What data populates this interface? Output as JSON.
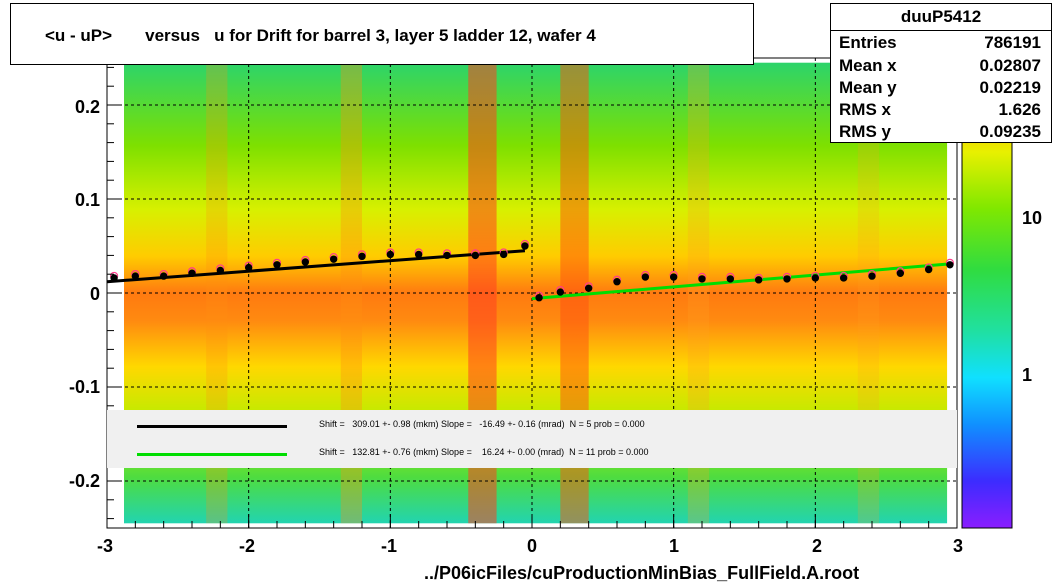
{
  "title": "<u - uP>       versus   u for Drift for barrel 3, layer 5 ladder 12, wafer 4",
  "stats": {
    "name": "duuP5412",
    "rows": [
      {
        "label": "Entries",
        "value": "786191"
      },
      {
        "label": "Mean x",
        "value": "0.02807"
      },
      {
        "label": "Mean y",
        "value": "0.02219"
      },
      {
        "label": "RMS x",
        "value": "1.626"
      },
      {
        "label": "RMS y",
        "value": "0.09235"
      }
    ]
  },
  "legend": {
    "entries": [
      {
        "color": "#000000",
        "text": "Shift =   309.01 +- 0.98 (mkm) Slope =   -16.49 +- 0.16 (mrad)  N = 5 prob = 0.000"
      },
      {
        "color": "#00dd00",
        "text": "Shift =   132.81 +- 0.76 (mkm) Slope =    16.24 +- 0.00 (mrad)  N = 11 prob = 0.000"
      }
    ]
  },
  "xlabel": "../P06icFiles/cuProductionMinBias_FullField.A.root",
  "colors": {
    "fit_black": "#000000",
    "fit_green": "#00dd00",
    "profile_pink": "#ff3c8c"
  },
  "chart_data": {
    "type": "heatmap",
    "xlim": [
      -3,
      3
    ],
    "ylim": [
      -0.25,
      0.25
    ],
    "x_ticks": [
      {
        "label": "-3",
        "value": -3
      },
      {
        "label": "-2",
        "value": -2
      },
      {
        "label": "-1",
        "value": -1
      },
      {
        "label": "0",
        "value": 0
      },
      {
        "label": "1",
        "value": 1
      },
      {
        "label": "2",
        "value": 2
      },
      {
        "label": "3",
        "value": 3
      }
    ],
    "y_ticks": [
      {
        "label": "0.2",
        "value": 0.2
      },
      {
        "label": "0.1",
        "value": 0.1
      },
      {
        "label": "0",
        "value": 0
      },
      {
        "label": "-0.1",
        "value": -0.1
      },
      {
        "label": "-0.2",
        "value": -0.2
      }
    ],
    "z_scale": "log",
    "z_ticks": [
      {
        "label": "1",
        "value": 1
      },
      {
        "label": "10",
        "value": 10
      }
    ],
    "grid": true,
    "profile_left": {
      "x": [
        -2.95,
        -2.8,
        -2.6,
        -2.4,
        -2.2,
        -2.0,
        -1.8,
        -1.6,
        -1.4,
        -1.2,
        -1.0,
        -0.8,
        -0.6,
        -0.4,
        -0.2,
        -0.05
      ],
      "y": [
        0.016,
        0.018,
        0.018,
        0.021,
        0.024,
        0.027,
        0.03,
        0.033,
        0.036,
        0.039,
        0.041,
        0.041,
        0.04,
        0.04,
        0.041,
        0.05
      ]
    },
    "profile_right": {
      "x": [
        0.05,
        0.2,
        0.4,
        0.6,
        0.8,
        1.0,
        1.2,
        1.4,
        1.6,
        1.8,
        2.0,
        2.2,
        2.4,
        2.6,
        2.8,
        2.95
      ],
      "y": [
        -0.005,
        0.001,
        0.005,
        0.012,
        0.017,
        0.017,
        0.015,
        0.015,
        0.014,
        0.015,
        0.016,
        0.016,
        0.018,
        0.021,
        0.025,
        0.03
      ]
    },
    "fit_black": {
      "x": [
        -3,
        -0.05
      ],
      "y": [
        0.012,
        0.045
      ]
    },
    "fit_green": {
      "x": [
        0.0,
        2.95
      ],
      "y": [
        -0.006,
        0.031
      ]
    }
  }
}
